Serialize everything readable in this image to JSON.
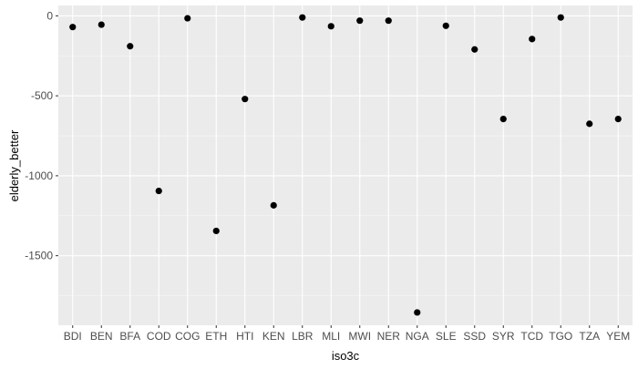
{
  "chart_data": {
    "type": "scatter",
    "xlabel": "iso3c",
    "ylabel": "elderly_better",
    "categories": [
      "BDI",
      "BEN",
      "BFA",
      "COD",
      "COG",
      "ETH",
      "HTI",
      "KEN",
      "LBR",
      "MLI",
      "MWI",
      "NER",
      "NGA",
      "SLE",
      "SSD",
      "SYR",
      "TCD",
      "TGO",
      "TZA",
      "YEM"
    ],
    "values": [
      -70,
      -55,
      -190,
      -1095,
      -15,
      -1345,
      -520,
      -1185,
      -10,
      -65,
      -30,
      -30,
      -1855,
      -62,
      -210,
      -645,
      -145,
      -10,
      -675,
      -645
    ],
    "ylim": [
      -1935,
      65
    ],
    "yticks": [
      0,
      -500,
      -1000,
      -1500
    ],
    "ytick_labels": [
      "0",
      "-500",
      "-1000",
      "-1500"
    ],
    "grid": true,
    "colors": {
      "panel": "#ebebeb",
      "grid_major": "#ffffff",
      "point": "#000000"
    }
  }
}
